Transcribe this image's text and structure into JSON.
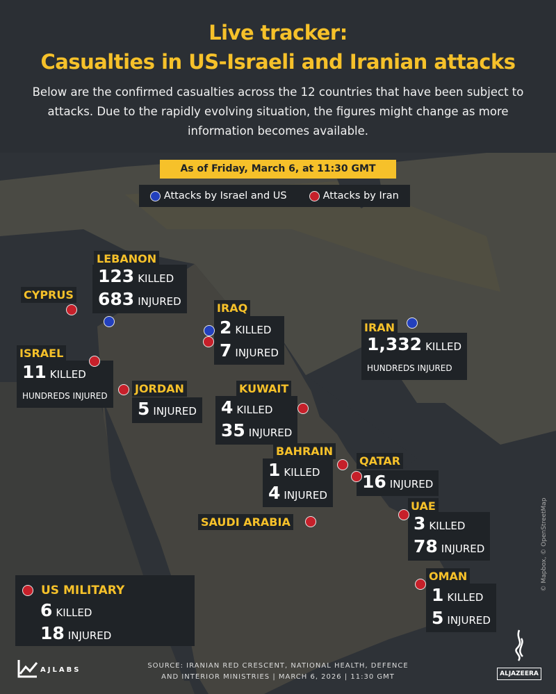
{
  "header": {
    "title_line1": "Live tracker:",
    "title_line2": "Casualties in US-Israeli and Iranian attacks",
    "subtitle": "Below are the confirmed casualties across the 12 countries that have been subject to attacks. Due to the rapidly evolving situation, the figures might change as more information becomes available.",
    "date_banner": "As of Friday, March 6, at 11:30 GMT"
  },
  "legend": [
    {
      "label": "Attacks by Israel and US",
      "color": "#2340bd"
    },
    {
      "label": "Attacks by Iran",
      "color": "#c6202a"
    }
  ],
  "countries": [
    {
      "name": "LEBANON",
      "attacker": "israel-us",
      "stats": [
        {
          "num": "123",
          "unit": "KILLED"
        },
        {
          "num": "683",
          "unit": "INJURED"
        }
      ]
    },
    {
      "name": "CYPRUS",
      "attacker": "iran",
      "stats": []
    },
    {
      "name": "IRAQ",
      "attacker": "both",
      "stats": [
        {
          "num": "2",
          "unit": "KILLED"
        },
        {
          "num": "7",
          "unit": "INJURED"
        }
      ]
    },
    {
      "name": "IRAN",
      "attacker": "israel-us",
      "stats": [
        {
          "num": "1,332",
          "unit": "KILLED"
        },
        {
          "text": "HUNDREDS INJURED"
        }
      ]
    },
    {
      "name": "ISRAEL",
      "attacker": "iran",
      "stats": [
        {
          "num": "11",
          "unit": "KILLED"
        },
        {
          "text": "HUNDREDS INJURED"
        }
      ]
    },
    {
      "name": "JORDAN",
      "attacker": "iran",
      "stats": [
        {
          "num": "5",
          "unit": "INJURED"
        }
      ]
    },
    {
      "name": "KUWAIT",
      "attacker": "iran",
      "stats": [
        {
          "num": "4",
          "unit": "KILLED"
        },
        {
          "num": "35",
          "unit": "INJURED"
        }
      ]
    },
    {
      "name": "BAHRAIN",
      "attacker": "iran",
      "stats": [
        {
          "num": "1",
          "unit": "KILLED"
        },
        {
          "num": "4",
          "unit": "INJURED"
        }
      ]
    },
    {
      "name": "QATAR",
      "attacker": "iran",
      "stats": [
        {
          "num": "16",
          "unit": "INJURED"
        }
      ]
    },
    {
      "name": "SAUDI ARABIA",
      "attacker": "iran",
      "stats": []
    },
    {
      "name": "UAE",
      "attacker": "iran",
      "stats": [
        {
          "num": "3",
          "unit": "KILLED"
        },
        {
          "num": "78",
          "unit": "INJURED"
        }
      ]
    },
    {
      "name": "OMAN",
      "attacker": "iran",
      "stats": [
        {
          "num": "1",
          "unit": "KILLED"
        },
        {
          "num": "5",
          "unit": "INJURED"
        }
      ]
    },
    {
      "name": "US MILITARY",
      "attacker": "iran",
      "stats": [
        {
          "num": "6",
          "unit": "KILLED"
        },
        {
          "num": "18",
          "unit": "INJURED"
        }
      ]
    }
  ],
  "footer": {
    "source_line1": "SOURCE:  IRANIAN RED CRESCENT, NATIONAL HEALTH, DEFENCE",
    "source_line2": "AND INTERIOR MINISTRIES   |  MARCH 6, 2026  |  11:30 GMT",
    "ajlabs": "AJLABS",
    "aljazeera": "ALJAZEERA",
    "map_credit": "© Mapbox, © OpenStreetMap"
  }
}
